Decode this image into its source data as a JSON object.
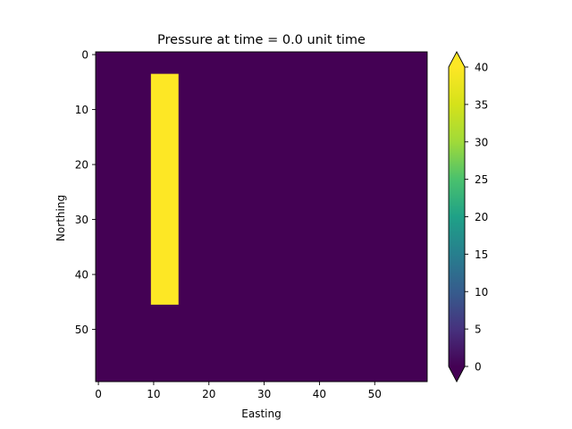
{
  "chart_data": {
    "type": "heatmap",
    "title": "Pressure at time = 0.0 unit time",
    "xlabel": "Easting",
    "ylabel": "Northing",
    "grid_size": [
      60,
      60
    ],
    "xlim": [
      -0.5,
      59.5
    ],
    "ylim": [
      59.5,
      -0.5
    ],
    "xticks": [
      0,
      10,
      20,
      30,
      40,
      50
    ],
    "yticks": [
      0,
      10,
      20,
      30,
      40,
      50
    ],
    "grid": false,
    "background_value": 0,
    "colormap": "viridis",
    "colorbar": {
      "min": 0,
      "max": 40,
      "ticks": [
        0,
        5,
        10,
        15,
        20,
        25,
        30,
        35,
        40
      ],
      "extend": "both",
      "placement": "right"
    },
    "regions": [
      {
        "value": 40,
        "col_start": 10,
        "col_end": 14,
        "row_start": 4,
        "row_end": 45
      }
    ],
    "colors": {
      "low": "#440154",
      "high": "#fde725"
    }
  }
}
